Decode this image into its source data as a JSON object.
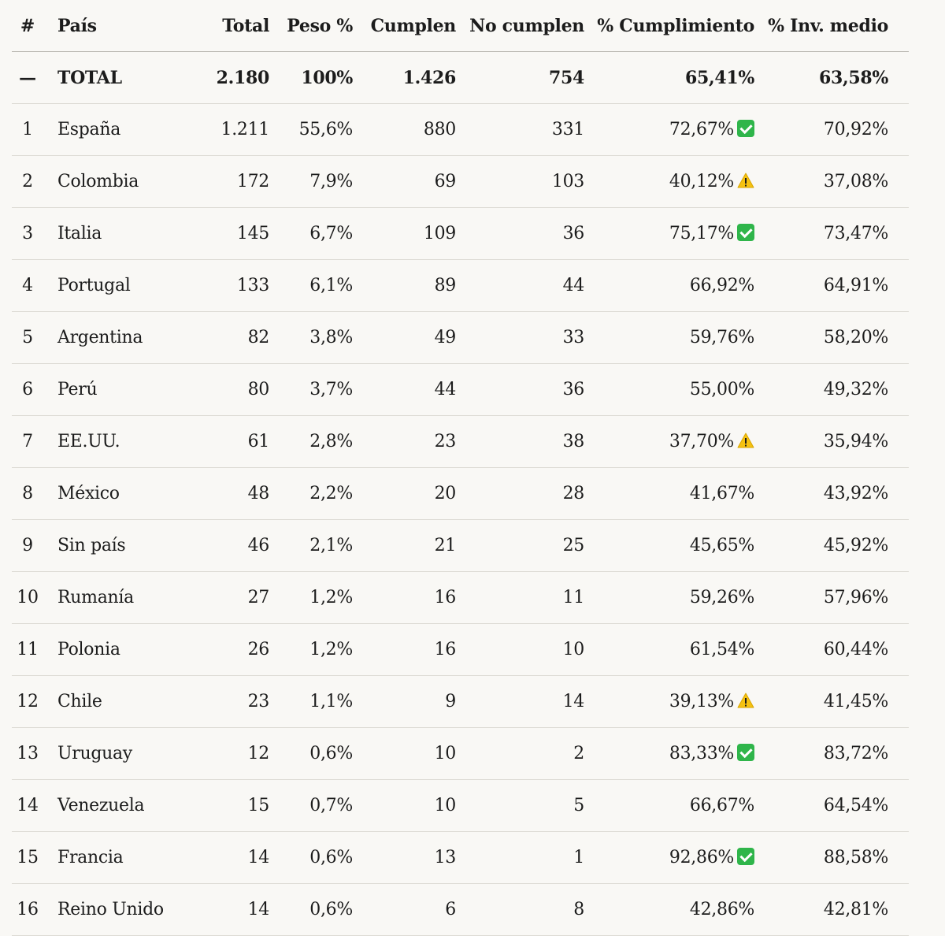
{
  "header": {
    "num": "#",
    "pais": "País",
    "total": "Total",
    "peso": "Peso %",
    "cumplen": "Cumplen",
    "no_cumplen": "No cumplen",
    "pct_cumplimiento": "% Cumplimiento",
    "pct_inv_medio": "% Inv. medio"
  },
  "total_row": {
    "num": "—",
    "pais": "TOTAL",
    "total": "2.180",
    "peso": "100%",
    "cumplen": "1.426",
    "no_cumplen": "754",
    "pct_cumplimiento": "65,41%",
    "pct_inv_medio": "63,58%"
  },
  "rows": [
    {
      "num": "1",
      "pais": "España",
      "total": "1.211",
      "peso": "55,6%",
      "cumplen": "880",
      "no_cumplen": "331",
      "pct_cumplimiento": "72,67%",
      "status": "ok",
      "pct_inv_medio": "70,92%"
    },
    {
      "num": "2",
      "pais": "Colombia",
      "total": "172",
      "peso": "7,9%",
      "cumplen": "69",
      "no_cumplen": "103",
      "pct_cumplimiento": "40,12%",
      "status": "warn",
      "pct_inv_medio": "37,08%"
    },
    {
      "num": "3",
      "pais": "Italia",
      "total": "145",
      "peso": "6,7%",
      "cumplen": "109",
      "no_cumplen": "36",
      "pct_cumplimiento": "75,17%",
      "status": "ok",
      "pct_inv_medio": "73,47%"
    },
    {
      "num": "4",
      "pais": "Portugal",
      "total": "133",
      "peso": "6,1%",
      "cumplen": "89",
      "no_cumplen": "44",
      "pct_cumplimiento": "66,92%",
      "status": "",
      "pct_inv_medio": "64,91%"
    },
    {
      "num": "5",
      "pais": "Argentina",
      "total": "82",
      "peso": "3,8%",
      "cumplen": "49",
      "no_cumplen": "33",
      "pct_cumplimiento": "59,76%",
      "status": "",
      "pct_inv_medio": "58,20%"
    },
    {
      "num": "6",
      "pais": "Perú",
      "total": "80",
      "peso": "3,7%",
      "cumplen": "44",
      "no_cumplen": "36",
      "pct_cumplimiento": "55,00%",
      "status": "",
      "pct_inv_medio": "49,32%"
    },
    {
      "num": "7",
      "pais": "EE.UU.",
      "total": "61",
      "peso": "2,8%",
      "cumplen": "23",
      "no_cumplen": "38",
      "pct_cumplimiento": "37,70%",
      "status": "warn",
      "pct_inv_medio": "35,94%"
    },
    {
      "num": "8",
      "pais": "México",
      "total": "48",
      "peso": "2,2%",
      "cumplen": "20",
      "no_cumplen": "28",
      "pct_cumplimiento": "41,67%",
      "status": "",
      "pct_inv_medio": "43,92%"
    },
    {
      "num": "9",
      "pais": "Sin país",
      "total": "46",
      "peso": "2,1%",
      "cumplen": "21",
      "no_cumplen": "25",
      "pct_cumplimiento": "45,65%",
      "status": "",
      "pct_inv_medio": "45,92%"
    },
    {
      "num": "10",
      "pais": "Rumanía",
      "total": "27",
      "peso": "1,2%",
      "cumplen": "16",
      "no_cumplen": "11",
      "pct_cumplimiento": "59,26%",
      "status": "",
      "pct_inv_medio": "57,96%"
    },
    {
      "num": "11",
      "pais": "Polonia",
      "total": "26",
      "peso": "1,2%",
      "cumplen": "16",
      "no_cumplen": "10",
      "pct_cumplimiento": "61,54%",
      "status": "",
      "pct_inv_medio": "60,44%"
    },
    {
      "num": "12",
      "pais": "Chile",
      "total": "23",
      "peso": "1,1%",
      "cumplen": "9",
      "no_cumplen": "14",
      "pct_cumplimiento": "39,13%",
      "status": "warn",
      "pct_inv_medio": "41,45%"
    },
    {
      "num": "13",
      "pais": "Uruguay",
      "total": "12",
      "peso": "0,6%",
      "cumplen": "10",
      "no_cumplen": "2",
      "pct_cumplimiento": "83,33%",
      "status": "ok",
      "pct_inv_medio": "83,72%"
    },
    {
      "num": "14",
      "pais": "Venezuela",
      "total": "15",
      "peso": "0,7%",
      "cumplen": "10",
      "no_cumplen": "5",
      "pct_cumplimiento": "66,67%",
      "status": "",
      "pct_inv_medio": "64,54%"
    },
    {
      "num": "15",
      "pais": "Francia",
      "total": "14",
      "peso": "0,6%",
      "cumplen": "13",
      "no_cumplen": "1",
      "pct_cumplimiento": "92,86%",
      "status": "ok",
      "pct_inv_medio": "88,58%"
    },
    {
      "num": "16",
      "pais": "Reino Unido",
      "total": "14",
      "peso": "0,6%",
      "cumplen": "6",
      "no_cumplen": "8",
      "pct_cumplimiento": "42,86%",
      "status": "",
      "pct_inv_medio": "42,81%"
    }
  ],
  "icons": {
    "ok": "check-mark-button-icon",
    "warn": "warning-icon"
  },
  "colors": {
    "ok": "#2fb54a",
    "warn": "#f5c211"
  }
}
